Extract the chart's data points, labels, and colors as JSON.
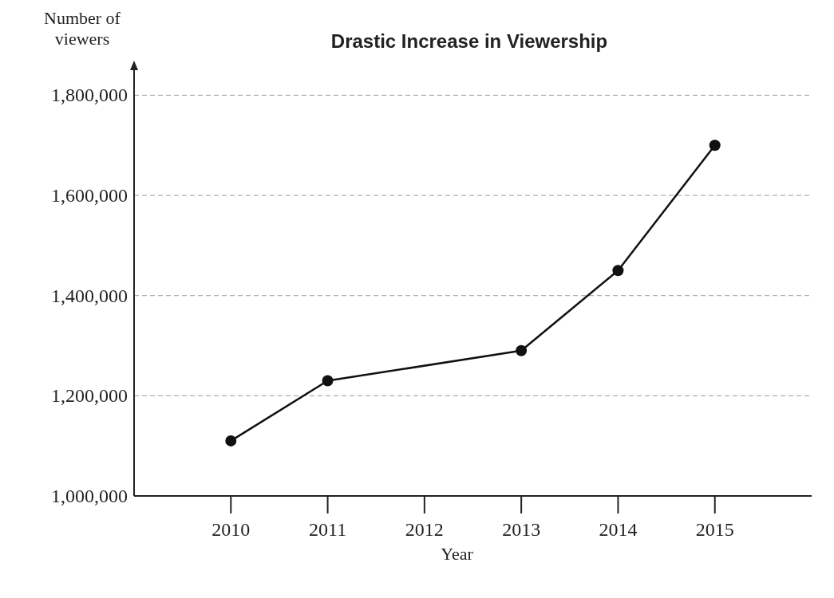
{
  "chart_data": {
    "type": "line",
    "title": "Drastic Increase in Viewership",
    "xlabel": "Year",
    "ylabel": "Number of viewers",
    "x": [
      2010,
      2011,
      2013,
      2014,
      2015
    ],
    "series": [
      {
        "color": "#111111",
        "values": [
          1110000,
          1230000,
          1290000,
          1450000,
          1700000
        ]
      }
    ],
    "xlim": [
      2009,
      2016
    ],
    "xticks": [
      2010,
      2011,
      2012,
      2013,
      2014,
      2015
    ],
    "ylim": [
      1000000,
      1850000
    ],
    "yticks": [
      {
        "value": 1000000,
        "label": "1,000,000"
      },
      {
        "value": 1200000,
        "label": "1,200,000"
      },
      {
        "value": 1400000,
        "label": "1,400,000"
      },
      {
        "value": 1600000,
        "label": "1,600,000"
      },
      {
        "value": 1800000,
        "label": "1,800,000"
      }
    ],
    "grid": "y",
    "marker": "circle",
    "line_style": "solid"
  }
}
